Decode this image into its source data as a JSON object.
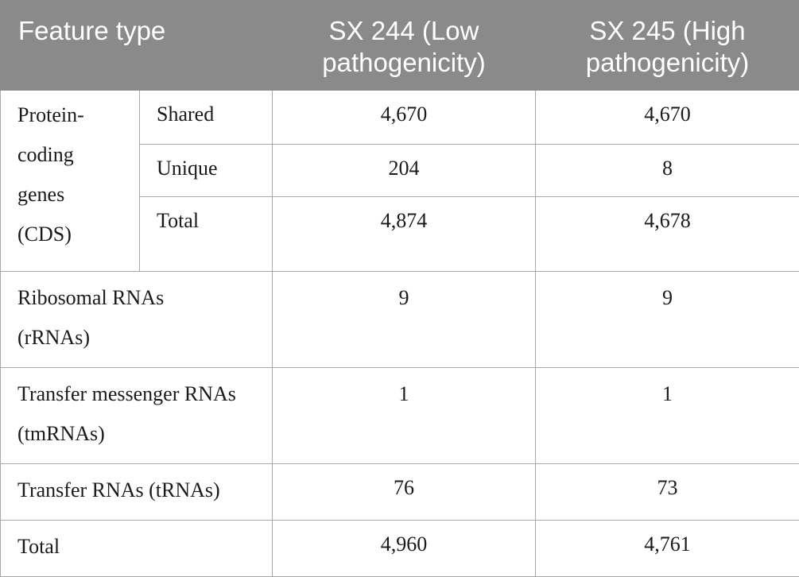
{
  "header": {
    "feature_type": "Feature type",
    "col_low": "SX 244 (Low pathogenicity)",
    "col_high": "SX 245 (High pathogenicity)"
  },
  "rows": {
    "cds_group": {
      "label_lines": [
        "Protein-",
        "coding",
        "genes",
        "(CDS)"
      ],
      "shared": {
        "label": "Shared",
        "low": "4,670",
        "high": "4,670"
      },
      "unique": {
        "label": "Unique",
        "low": "204",
        "high": "8"
      },
      "total": {
        "label": "Total",
        "low": "4,874",
        "high": "4,678"
      }
    },
    "rrna": {
      "label_lines": [
        "Ribosomal RNAs",
        "(rRNAs)"
      ],
      "low": "9",
      "high": "9"
    },
    "tmrna": {
      "label_lines": [
        "Transfer messenger RNAs",
        "(tmRNAs)"
      ],
      "low": "1",
      "high": "1"
    },
    "trna": {
      "label": "Transfer RNAs (tRNAs)",
      "low": "76",
      "high": "73"
    },
    "total": {
      "label": "Total",
      "low": "4,960",
      "high": "4,761"
    }
  }
}
